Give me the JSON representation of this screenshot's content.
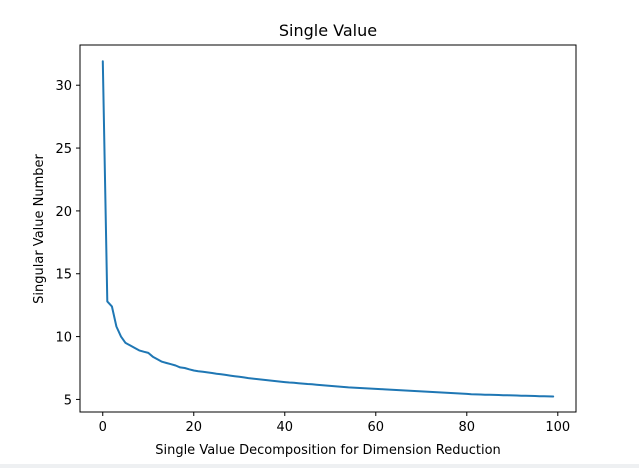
{
  "chart_data": {
    "type": "line",
    "title": "Single Value",
    "xlabel": "Single Value Decomposition for Dimension Reduction",
    "ylabel": "Singular Value Number",
    "xlim": [
      -5,
      104
    ],
    "ylim": [
      4.0,
      33.2
    ],
    "x_ticks": [
      0,
      20,
      40,
      60,
      80,
      100
    ],
    "y_ticks": [
      5,
      10,
      15,
      20,
      25,
      30
    ],
    "x_tick_labels": [
      "0",
      "20",
      "40",
      "60",
      "80",
      "100"
    ],
    "y_tick_labels": [
      "5",
      "10",
      "15",
      "20",
      "25",
      "30"
    ],
    "grid": false,
    "color": "#1f77b4",
    "series": [
      {
        "x_start": 0,
        "x_step": 1,
        "values": [
          31.9,
          12.8,
          12.4,
          10.8,
          10.0,
          9.5,
          9.3,
          9.1,
          8.9,
          8.8,
          8.7,
          8.4,
          8.2,
          8.0,
          7.9,
          7.8,
          7.7,
          7.55,
          7.5,
          7.4,
          7.3,
          7.25,
          7.2,
          7.15,
          7.1,
          7.05,
          7.0,
          6.95,
          6.9,
          6.85,
          6.8,
          6.75,
          6.7,
          6.66,
          6.62,
          6.58,
          6.54,
          6.5,
          6.46,
          6.42,
          6.38,
          6.35,
          6.32,
          6.29,
          6.26,
          6.23,
          6.2,
          6.17,
          6.14,
          6.11,
          6.08,
          6.05,
          6.02,
          5.99,
          5.96,
          5.94,
          5.92,
          5.9,
          5.88,
          5.86,
          5.84,
          5.82,
          5.8,
          5.78,
          5.76,
          5.74,
          5.72,
          5.7,
          5.68,
          5.66,
          5.64,
          5.62,
          5.6,
          5.58,
          5.56,
          5.54,
          5.52,
          5.5,
          5.48,
          5.46,
          5.44,
          5.42,
          5.4,
          5.39,
          5.38,
          5.37,
          5.36,
          5.35,
          5.34,
          5.33,
          5.32,
          5.31,
          5.3,
          5.29,
          5.28,
          5.27,
          5.26,
          5.25,
          5.24,
          5.23
        ]
      }
    ]
  }
}
